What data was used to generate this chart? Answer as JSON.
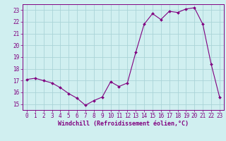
{
  "x": [
    0,
    1,
    2,
    3,
    4,
    5,
    6,
    7,
    8,
    9,
    10,
    11,
    12,
    13,
    14,
    15,
    16,
    17,
    18,
    19,
    20,
    21,
    22,
    23
  ],
  "y": [
    17.1,
    17.2,
    17.0,
    16.8,
    16.4,
    15.9,
    15.5,
    14.9,
    15.3,
    15.6,
    16.9,
    16.5,
    16.8,
    19.4,
    21.8,
    22.7,
    22.2,
    22.9,
    22.8,
    23.1,
    23.2,
    21.8,
    18.4,
    15.6
  ],
  "line_color": "#800080",
  "marker": "D",
  "marker_size": 2.0,
  "bg_color": "#d0eff0",
  "grid_color": "#aad4d8",
  "tick_color": "#800080",
  "label_color": "#800080",
  "xlabel": "Windchill (Refroidissement éolien,°C)",
  "xlim": [
    -0.5,
    23.5
  ],
  "ylim": [
    14.5,
    23.5
  ],
  "yticks": [
    15,
    16,
    17,
    18,
    19,
    20,
    21,
    22,
    23
  ],
  "xticks": [
    0,
    1,
    2,
    3,
    4,
    5,
    6,
    7,
    8,
    9,
    10,
    11,
    12,
    13,
    14,
    15,
    16,
    17,
    18,
    19,
    20,
    21,
    22,
    23
  ],
  "xlabel_fontsize": 6.0,
  "tick_fontsize": 5.5
}
